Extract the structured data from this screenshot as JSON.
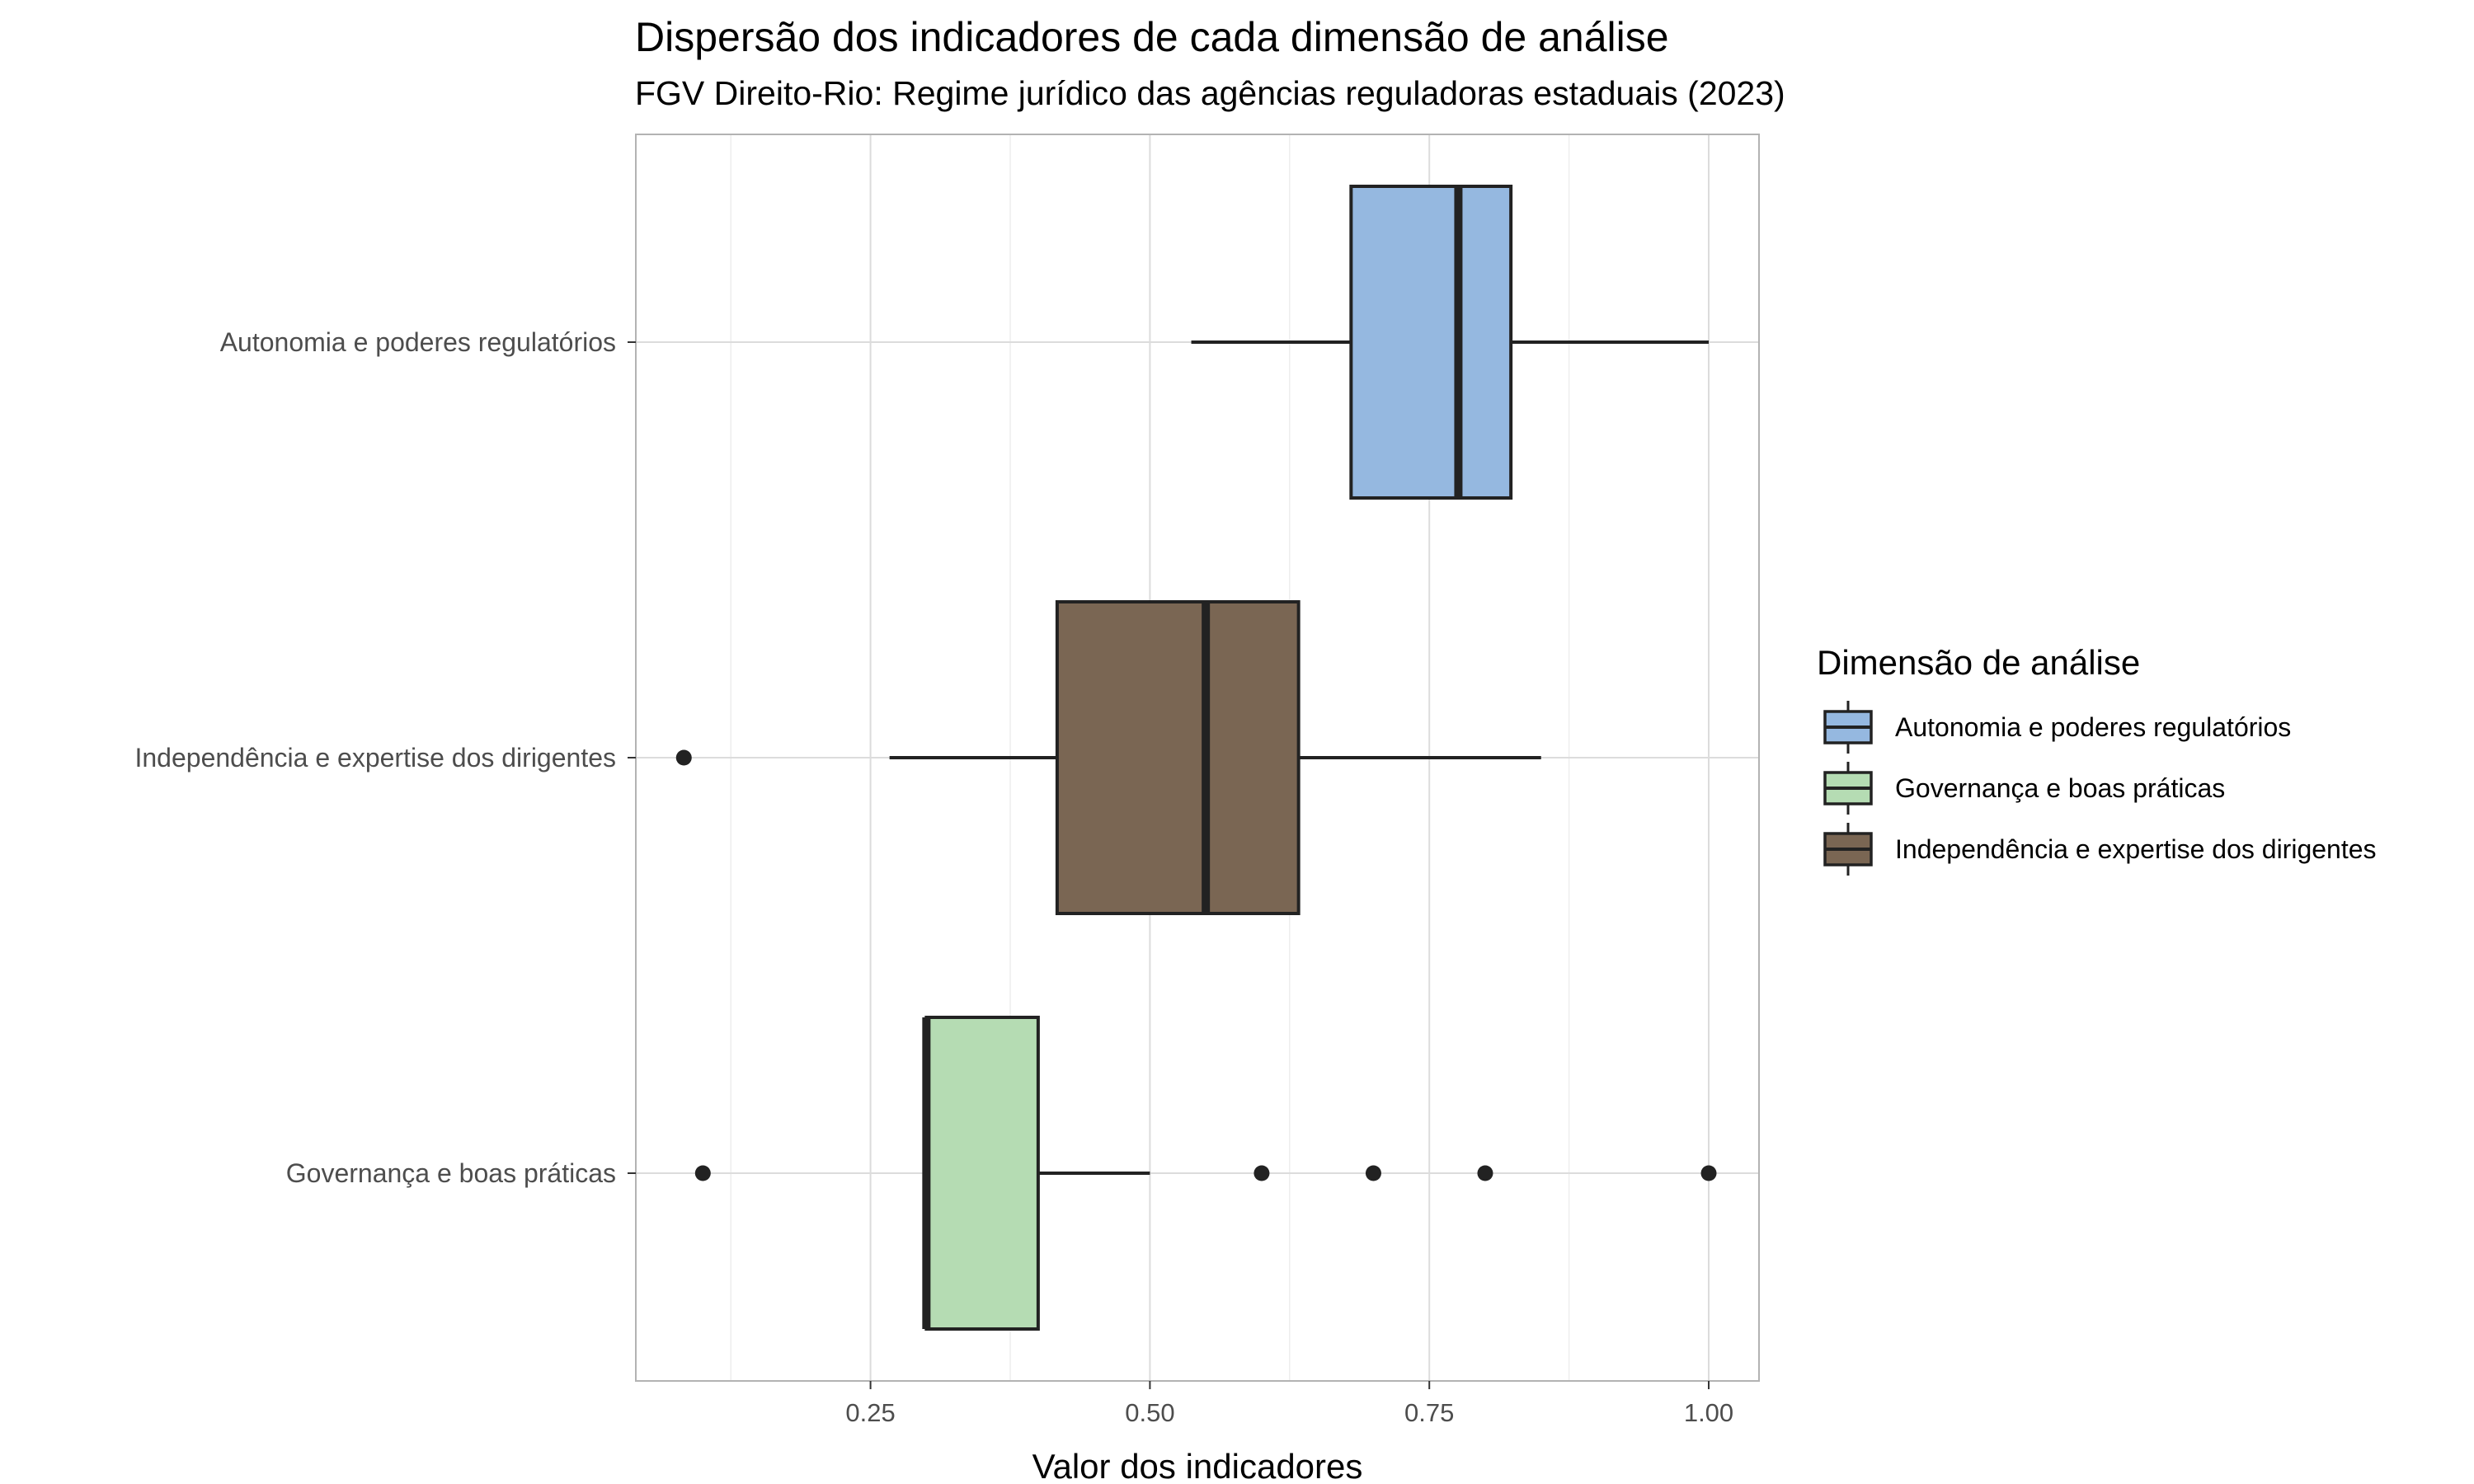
{
  "chart_data": {
    "type": "boxplot",
    "orientation": "horizontal",
    "title": "Dispersão dos indicadores de cada dimensão de análise",
    "subtitle": "FGV Direito-Rio: Regime jurídico das agências reguladoras estaduais (2023)",
    "xlabel": "Valor dos indicadores",
    "ylabel": "",
    "xlim": [
      0.04,
      1.045
    ],
    "x_ticks": [
      0.25,
      0.5,
      0.75,
      1.0
    ],
    "x_tick_labels": [
      "0.25",
      "0.50",
      "0.75",
      "1.00"
    ],
    "grid": true,
    "legend_position": "right",
    "legend_title": "Dimensão de análise",
    "categories": [
      "Autonomia e poderes regulatórios",
      "Independência e expertise dos dirigentes",
      "Governança e boas práticas"
    ],
    "series": [
      {
        "name": "Autonomia e poderes regulatórios",
        "color": "#95B8E0",
        "whisker_low": 0.537,
        "q1": 0.68,
        "median": 0.776,
        "q3": 0.823,
        "whisker_high": 1.0,
        "outliers": []
      },
      {
        "name": "Independência e expertise dos dirigentes",
        "color": "#7A6653",
        "whisker_low": 0.267,
        "q1": 0.417,
        "median": 0.55,
        "q3": 0.633,
        "whisker_high": 0.85,
        "outliers": [
          0.083
        ]
      },
      {
        "name": "Governança e boas práticas",
        "color": "#B5DCB3",
        "whisker_low": 0.3,
        "q1": 0.3,
        "median": 0.3,
        "q3": 0.4,
        "whisker_high": 0.5,
        "outliers": [
          0.1,
          0.6,
          0.7,
          0.8,
          1.0
        ]
      }
    ],
    "legend_order": [
      "Autonomia e poderes regulatórios",
      "Governança e boas práticas",
      "Independência e expertise dos dirigentes"
    ]
  }
}
